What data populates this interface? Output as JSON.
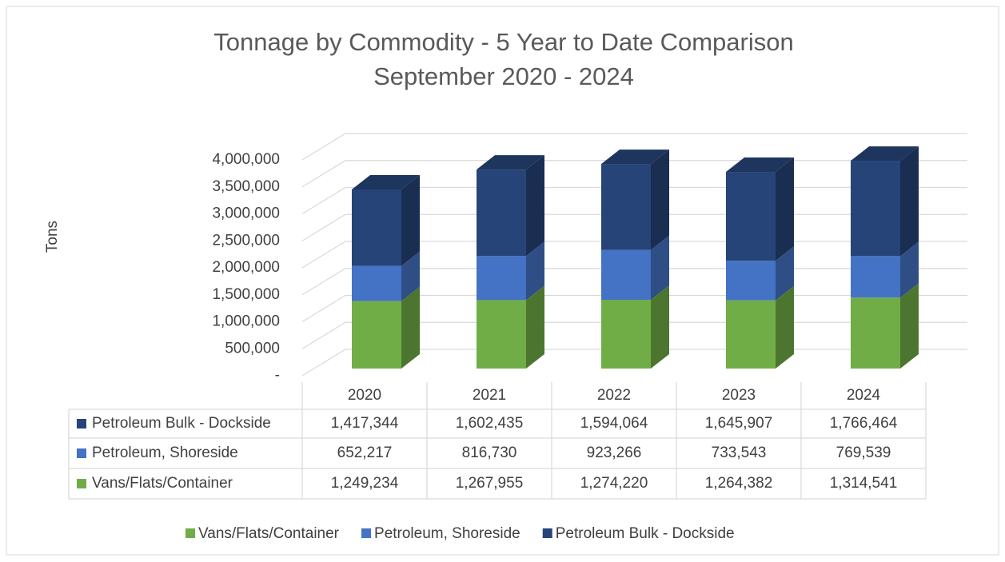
{
  "chart_data": {
    "type": "bar3d_stacked",
    "title": "Tonnage by Commodity - 5 Year to Date Comparison",
    "subtitle": "September 2020 - 2024",
    "y_label": "Tons",
    "categories": [
      "2020",
      "2021",
      "2022",
      "2023",
      "2024"
    ],
    "series": [
      {
        "name": "Vans/Flats/Container",
        "color": "#70ad47",
        "values": [
          1249234,
          1267955,
          1274220,
          1264382,
          1314541
        ],
        "value_labels": [
          "1,249,234",
          "1,267,955",
          "1,274,220",
          "1,264,382",
          "1,314,541"
        ]
      },
      {
        "name": "Petroleum, Shoreside",
        "color": "#4472c4",
        "values": [
          652217,
          816730,
          923266,
          733543,
          769539
        ],
        "value_labels": [
          "652,217",
          "816,730",
          "923,266",
          "733,543",
          "769,539"
        ]
      },
      {
        "name": "Petroleum Bulk - Dockside",
        "color": "#264478",
        "values": [
          1417344,
          1602435,
          1594064,
          1645907,
          1766464
        ],
        "value_labels": [
          "1,417,344",
          "1,602,435",
          "1,594,064",
          "1,645,907",
          "1,766,464"
        ]
      }
    ],
    "ylim": [
      0,
      4000000
    ],
    "yticks": [
      {
        "value": 0,
        "label": "-"
      },
      {
        "value": 500000,
        "label": "500,000"
      },
      {
        "value": 1000000,
        "label": "1,000,000"
      },
      {
        "value": 1500000,
        "label": "1,500,000"
      },
      {
        "value": 2000000,
        "label": "2,000,000"
      },
      {
        "value": 2500000,
        "label": "2,500,000"
      },
      {
        "value": 3000000,
        "label": "3,000,000"
      },
      {
        "value": 3500000,
        "label": "3,500,000"
      },
      {
        "value": 4000000,
        "label": "4,000,000"
      }
    ],
    "grid": true
  }
}
